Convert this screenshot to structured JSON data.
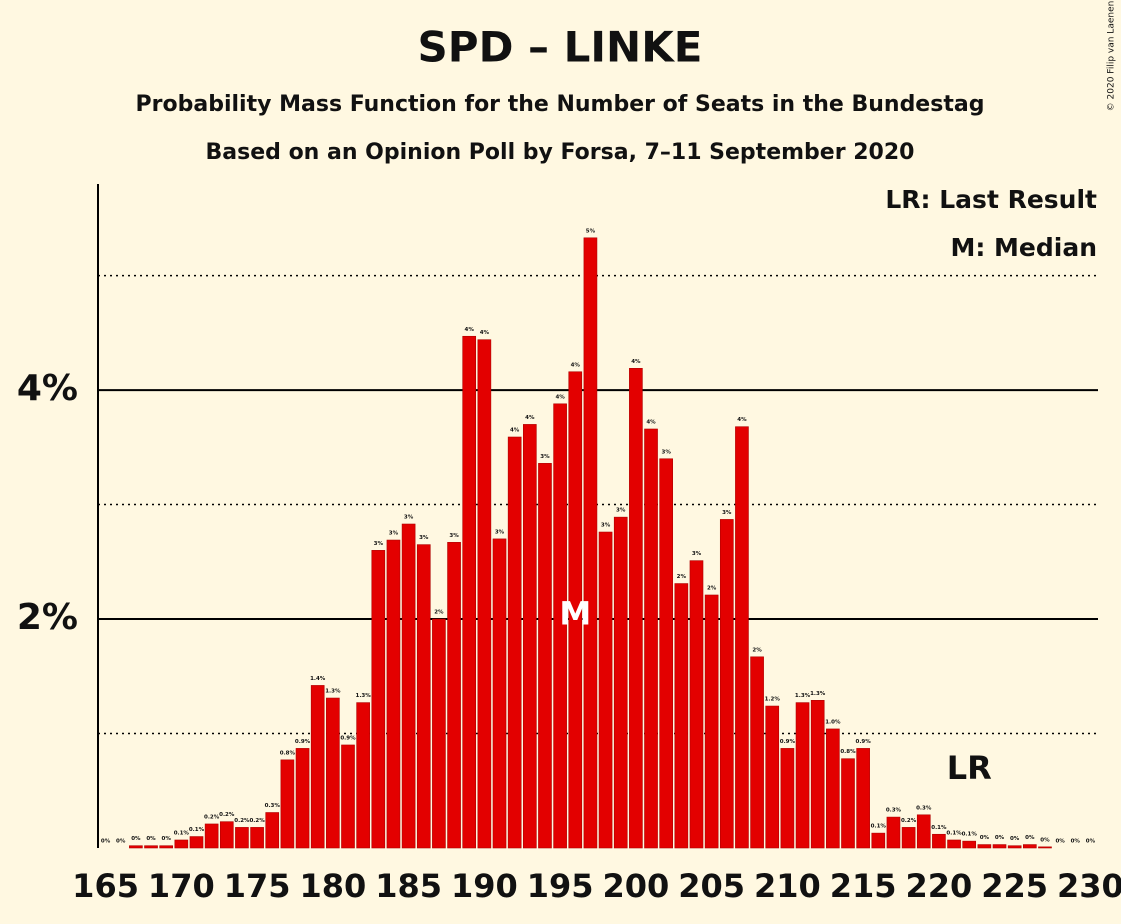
{
  "chart_data": {
    "type": "bar",
    "title": "SPD – LINKE",
    "subtitle": "Probability Mass Function for the Number of Seats in the Bundestag",
    "subtitle2": "Based on an Opinion Poll by Forsa, 7–11 September 2020",
    "credit": "© 2020 Filip van Laenen",
    "legend": [
      "LR: Last Result",
      "M: Median"
    ],
    "annotations": [
      {
        "text": "M",
        "x": 196,
        "y": 2.03
      },
      {
        "text": "LR",
        "x": 222,
        "y": 0.68
      }
    ],
    "color": "#e30000",
    "x": [
      165,
      166,
      167,
      168,
      169,
      170,
      171,
      172,
      173,
      174,
      175,
      176,
      177,
      178,
      179,
      180,
      181,
      182,
      183,
      184,
      185,
      186,
      187,
      188,
      189,
      190,
      191,
      192,
      193,
      194,
      195,
      196,
      197,
      198,
      199,
      200,
      201,
      202,
      203,
      204,
      205,
      206,
      207,
      208,
      209,
      210,
      211,
      212,
      213,
      214,
      215,
      216,
      217,
      218,
      219,
      220,
      221,
      222,
      223,
      224,
      225,
      226,
      227,
      228,
      229,
      230
    ],
    "values": [
      0,
      0,
      0.02,
      0.02,
      0.02,
      0.07,
      0.1,
      0.21,
      0.23,
      0.18,
      0.18,
      0.31,
      0.77,
      0.87,
      1.42,
      1.31,
      0.9,
      1.27,
      2.6,
      2.69,
      2.83,
      2.65,
      2.0,
      2.67,
      4.47,
      4.44,
      2.7,
      3.59,
      3.7,
      3.36,
      3.88,
      4.16,
      5.33,
      2.76,
      2.89,
      4.19,
      3.66,
      3.4,
      2.31,
      2.51,
      2.21,
      2.87,
      3.68,
      1.67,
      1.24,
      0.87,
      1.27,
      1.29,
      1.04,
      0.78,
      0.87,
      0.13,
      0.27,
      0.18,
      0.29,
      0.12,
      0.07,
      0.06,
      0.03,
      0.03,
      0.02,
      0.03,
      0.01,
      0,
      0,
      0
    ],
    "value_labels": [
      "0%",
      "0%",
      "0%",
      "0%",
      "0%",
      "0.1%",
      "0.1%",
      "0.2%",
      "0.2%",
      "0.2%",
      "0.2%",
      "0.3%",
      "0.8%",
      "0.9%",
      "1.4%",
      "1.3%",
      "0.9%",
      "1.3%",
      "3%",
      "3%",
      "3%",
      "3%",
      "2%",
      "3%",
      "4%",
      "4%",
      "3%",
      "4%",
      "4%",
      "3%",
      "4%",
      "4%",
      "5%",
      "3%",
      "3%",
      "4%",
      "4%",
      "3%",
      "2%",
      "3%",
      "2%",
      "3%",
      "4%",
      "2%",
      "1.2%",
      "0.9%",
      "1.3%",
      "1.3%",
      "1.0%",
      "0.8%",
      "0.9%",
      "0.1%",
      "0.3%",
      "0.2%",
      "0.3%",
      "0.1%",
      "0.1%",
      "0.1%",
      "0%",
      "0%",
      "0%",
      "0%",
      "0%",
      "0%",
      "0%",
      "0%"
    ],
    "xlim": [
      164.5,
      230.5
    ],
    "xticks": [
      165,
      170,
      175,
      180,
      185,
      190,
      195,
      200,
      205,
      210,
      215,
      220,
      225,
      230
    ],
    "ylim": [
      0,
      5.8
    ],
    "yticks": [
      {
        "value": 2,
        "label": "2%"
      },
      {
        "value": 4,
        "label": "4%"
      }
    ],
    "minor_gridlines": [
      1,
      3,
      5
    ],
    "grid": true
  }
}
